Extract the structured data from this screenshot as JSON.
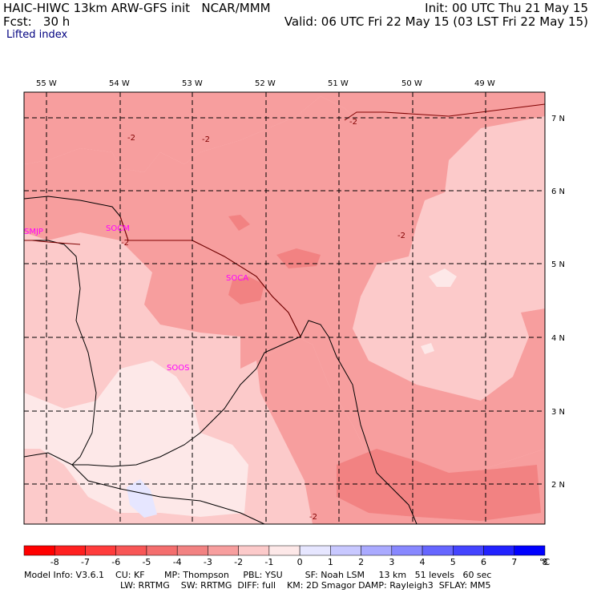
{
  "header": {
    "title": "HAIC-HIWC 13km ARW-GFS init   NCAR/MMM",
    "fcst": "Fcst:   30 h",
    "init": "Init: 00 UTC Thu 21 May 15",
    "valid": "Valid: 06 UTC Fri 22 May 15 (03 LST Fri 22 May 15)",
    "field": "Lifted index"
  },
  "map": {
    "lon_labels": [
      "55 W",
      "54 W",
      "53 W",
      "52 W",
      "51 W",
      "50 W",
      "49 W"
    ],
    "lat_labels": [
      "7 N",
      "6 N",
      "5 N",
      "4 N",
      "3 N",
      "2 N"
    ],
    "stations": [
      "SMJP",
      "SOCM",
      "SOCA",
      "SOOS"
    ],
    "contour_labels": [
      "-2",
      "-2",
      "-2",
      "-2",
      "-2",
      "-2"
    ],
    "colors": {
      "fill_minus3_to_minus2": "#f79e9e",
      "fill_minus2_to_minus1": "#fccaca",
      "fill_minus1_to_0": "#fde8e8",
      "fill_0_to_1": "#ffffff",
      "fill_1_to_2": "#e6e6ff",
      "fill_minus4_to_minus3": "#f28282"
    }
  },
  "colorbar": {
    "labels": [
      "-8",
      "-7",
      "-6",
      "-5",
      "-4",
      "-3",
      "-2",
      "-1",
      "0",
      "1",
      "2",
      "3",
      "4",
      "5",
      "6",
      "7",
      "8"
    ],
    "unit": "°C",
    "colors": [
      "#ff0000",
      "#ff2020",
      "#ff3c3c",
      "#f85656",
      "#f46e6e",
      "#f28282",
      "#f79e9e",
      "#fccaca",
      "#fde8e8",
      "#e6e6ff",
      "#c8c8ff",
      "#aaaaff",
      "#8888ff",
      "#6666ff",
      "#4444ff",
      "#2222ff",
      "#0000ff"
    ]
  },
  "footer": {
    "line1": "Model Info: V3.6.1    CU: KF       MP: Thompson     PBL: YSU        SF: Noah LSM     13 km   51 levels   60 sec",
    "line2": "LW: RRTMG    SW: RRTMG  DIFF: full    KM: 2D Smagor DAMP: Rayleigh3  SFLAY: MM5"
  }
}
